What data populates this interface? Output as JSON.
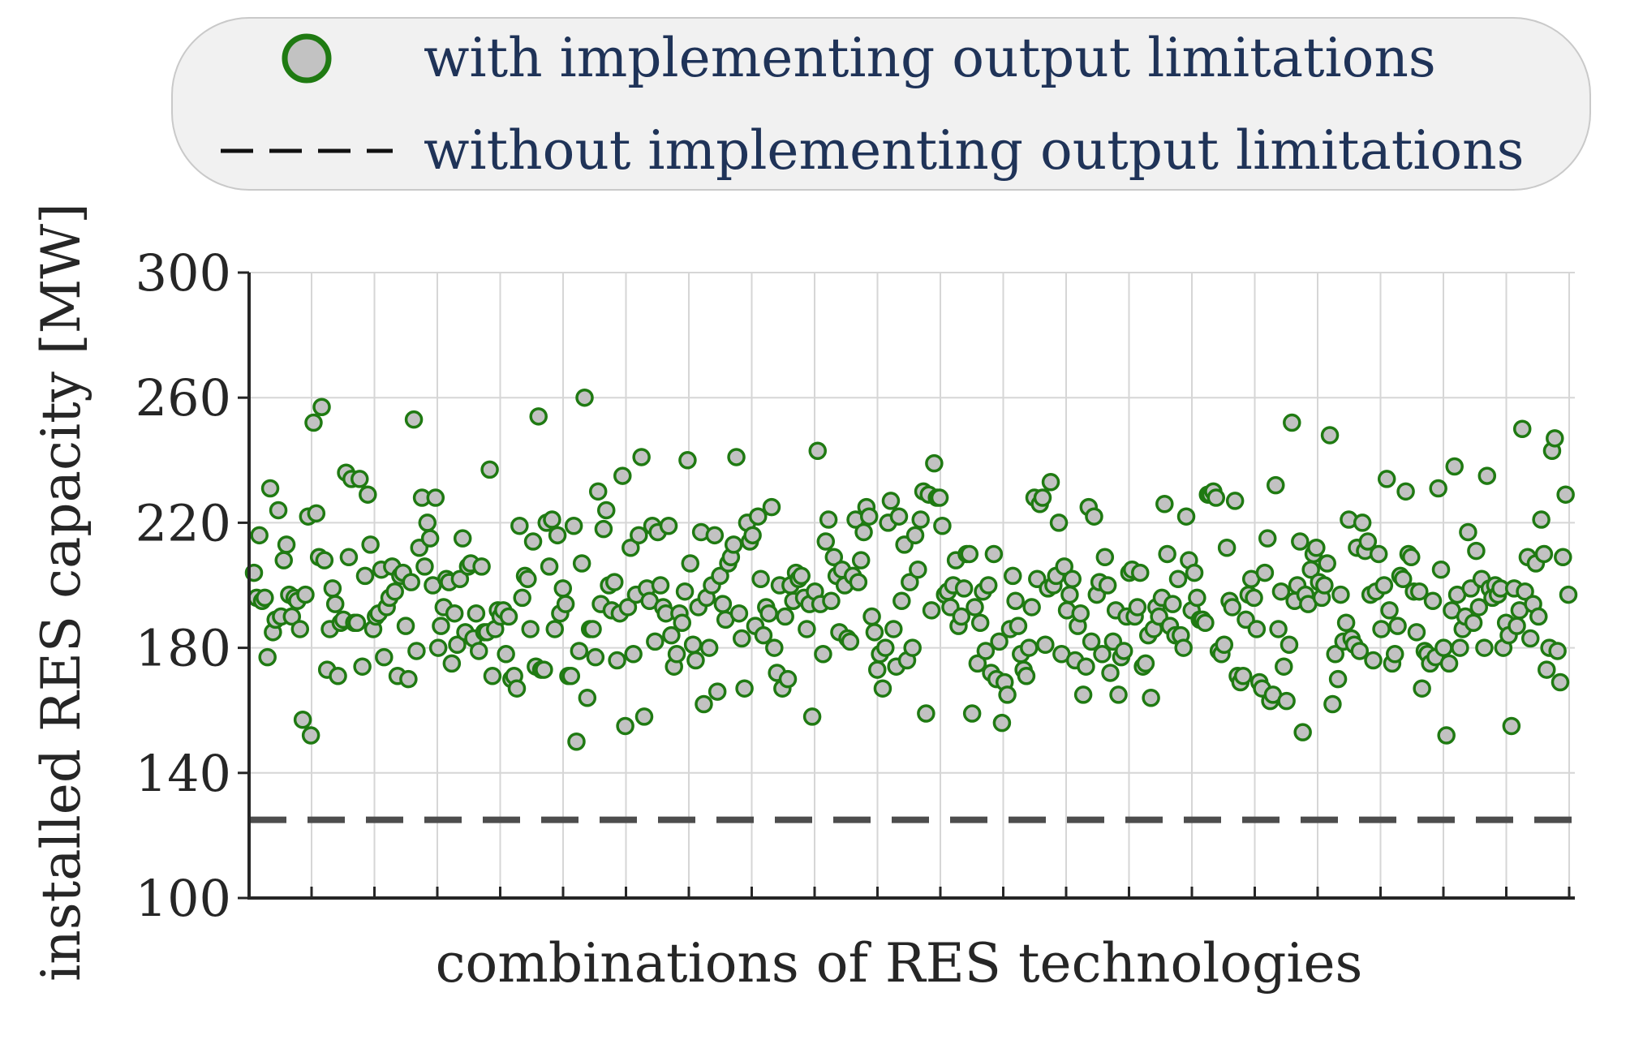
{
  "chart_data": {
    "type": "scatter",
    "xlabel": "combinations of RES technologies",
    "ylabel": "installed RES capacity [MW]",
    "ylim": [
      100,
      300
    ],
    "yticks": [
      100,
      140,
      180,
      220,
      260,
      300
    ],
    "ytick_labels": [
      "100",
      "140",
      "180",
      "220",
      "260",
      "300"
    ],
    "x_ticks_count": 21,
    "grid": true,
    "legend_position": "top",
    "legend": {
      "with_label": "with implementing output limitations",
      "without_label": "without implementing output limitations"
    },
    "baseline": {
      "name": "without implementing output limitations",
      "value": 125
    },
    "colors": {
      "marker_edge": "#1f7a12",
      "marker_fill": "#c2c2c2",
      "baseline": "#4d4d4d",
      "legend_text": "#1f3358",
      "grid": "#d6d6d6"
    },
    "series": [
      {
        "name": "with implementing output limitations",
        "values": [
          204,
          196,
          216,
          195,
          196,
          177,
          231,
          185,
          189,
          224,
          190,
          208,
          213,
          197,
          190,
          196,
          195,
          186,
          157,
          197,
          222,
          152,
          252,
          223,
          209,
          257,
          208,
          173,
          186,
          199,
          194,
          171,
          188,
          189,
          236,
          209,
          234,
          188,
          188,
          234,
          174,
          203,
          229,
          213,
          186,
          190,
          191,
          205,
          177,
          193,
          196,
          206,
          198,
          171,
          203,
          204,
          187,
          170,
          201,
          253,
          179,
          212,
          228,
          206,
          220,
          215,
          200,
          228,
          180,
          187,
          193,
          202,
          201,
          175,
          191,
          181,
          202,
          215,
          185,
          206,
          207,
          183,
          191,
          179,
          206,
          185,
          185,
          237,
          171,
          186,
          192,
          190,
          192,
          178,
          190,
          170,
          171,
          167,
          219,
          196,
          203,
          202,
          186,
          214,
          174,
          254,
          173,
          173,
          220,
          206,
          221,
          186,
          216,
          191,
          199,
          194,
          171,
          171,
          219,
          150,
          179,
          207,
          260,
          164,
          186,
          186,
          177,
          230,
          194,
          218,
          224,
          200,
          192,
          201,
          176,
          191,
          235,
          155,
          193,
          212,
          178,
          197,
          216,
          241,
          158,
          199,
          195,
          219,
          182,
          217,
          200,
          193,
          191,
          219,
          184,
          174,
          178,
          191,
          188,
          198,
          240,
          207,
          181,
          176,
          193,
          217,
          162,
          196,
          180,
          200,
          216,
          166,
          203,
          194,
          189,
          207,
          209,
          213,
          241,
          191,
          183,
          167,
          220,
          214,
          216,
          187,
          222,
          202,
          184,
          193,
          191,
          225,
          180,
          172,
          200,
          167,
          190,
          170,
          200,
          195,
          204,
          202,
          203,
          196,
          186,
          194,
          158,
          198,
          243,
          194,
          178,
          214,
          221,
          195,
          209,
          203,
          185,
          205,
          200,
          183,
          182,
          203,
          221,
          201,
          208,
          217,
          225,
          222,
          190,
          185,
          173,
          178,
          167,
          180,
          220,
          227,
          186,
          174,
          222,
          195,
          213,
          176,
          201,
          180,
          216,
          205,
          221,
          230,
          159,
          229,
          192,
          239,
          228,
          228,
          219,
          197,
          198,
          193,
          200,
          208,
          187,
          190,
          199,
          210,
          210,
          159,
          193,
          175,
          188,
          198,
          179,
          200,
          172,
          210,
          170,
          182,
          156,
          169,
          165,
          186,
          203,
          195,
          187,
          178,
          173,
          171,
          180,
          193,
          228,
          202,
          226,
          228,
          181,
          199,
          233,
          200,
          203,
          220,
          178,
          206,
          192,
          197,
          202,
          176,
          187,
          191,
          165,
          174,
          225,
          182,
          222,
          197,
          201,
          178,
          209,
          200,
          172,
          182,
          192,
          165,
          177,
          179,
          190,
          204,
          205,
          190,
          193,
          204,
          174,
          175,
          184,
          164,
          186,
          193,
          190,
          196,
          226,
          210,
          187,
          194,
          184,
          202,
          184,
          180,
          222,
          208,
          192,
          204,
          196,
          189,
          189,
          188,
          229,
          229,
          230,
          228,
          179,
          178,
          181,
          212,
          195,
          193,
          227,
          171,
          169,
          171,
          189,
          197,
          202,
          196,
          186,
          169,
          167,
          204,
          215,
          163,
          165,
          232,
          186,
          198,
          174,
          163,
          181,
          252,
          195,
          200,
          214,
          153,
          197,
          194,
          205,
          210,
          212,
          201,
          196,
          200,
          207,
          248,
          162,
          178,
          170,
          197,
          182,
          188,
          221,
          183,
          181,
          212,
          179,
          220,
          211,
          214,
          197,
          176,
          198,
          210,
          186,
          200,
          234,
          192,
          175,
          178,
          187,
          203,
          202,
          230,
          210,
          209,
          198,
          185,
          198,
          167,
          179,
          178,
          175,
          195,
          177,
          231,
          205,
          180,
          152,
          175,
          192,
          238,
          197,
          180,
          186,
          190,
          217,
          199,
          188,
          211,
          193,
          202,
          180,
          235,
          199,
          196,
          200,
          197,
          199,
          180,
          188,
          184,
          155,
          199,
          187,
          192,
          250,
          198,
          209,
          183,
          194,
          207,
          190,
          221,
          210,
          173,
          180,
          243,
          247,
          179,
          169,
          209,
          229,
          197
        ]
      }
    ]
  }
}
